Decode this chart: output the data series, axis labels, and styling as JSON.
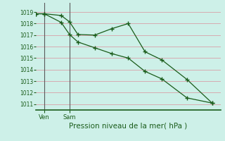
{
  "title": "Pression niveau de la mer( hPa )",
  "bg_color": "#cdf0e8",
  "plot_bg_color": "#cdf0e8",
  "grid_color": "#d8a0a8",
  "line_color": "#1a5c1a",
  "vline_color": "#5a5a5a",
  "ylim": [
    1010.5,
    1019.8
  ],
  "yticks": [
    1011,
    1012,
    1013,
    1014,
    1015,
    1016,
    1017,
    1018,
    1019
  ],
  "xlim": [
    0,
    11.0
  ],
  "line1_x": [
    0,
    0.5,
    1.5,
    2.0,
    2.5,
    3.5,
    4.5,
    5.5,
    6.5,
    7.5,
    9.0,
    10.5
  ],
  "line1_y": [
    1018.85,
    1018.85,
    1018.7,
    1018.15,
    1017.05,
    1017.0,
    1017.55,
    1018.0,
    1015.55,
    1014.85,
    1013.15,
    1011.1
  ],
  "line2_x": [
    0,
    0.5,
    1.5,
    2.0,
    2.5,
    3.5,
    4.5,
    5.5,
    6.5,
    7.5,
    9.0,
    10.5
  ],
  "line2_y": [
    1018.85,
    1018.85,
    1018.1,
    1017.05,
    1016.4,
    1015.9,
    1015.4,
    1015.0,
    1013.85,
    1013.2,
    1011.55,
    1011.1
  ],
  "ven_x": 0.5,
  "sam_x": 2.0,
  "xtick_positions": [
    0.5,
    2.0
  ],
  "xtick_labels": [
    "Ven",
    "Sam"
  ],
  "ylabel_fontsize": 5.5,
  "xlabel_fontsize": 7.5,
  "tick_label_color": "#1a5c1a"
}
